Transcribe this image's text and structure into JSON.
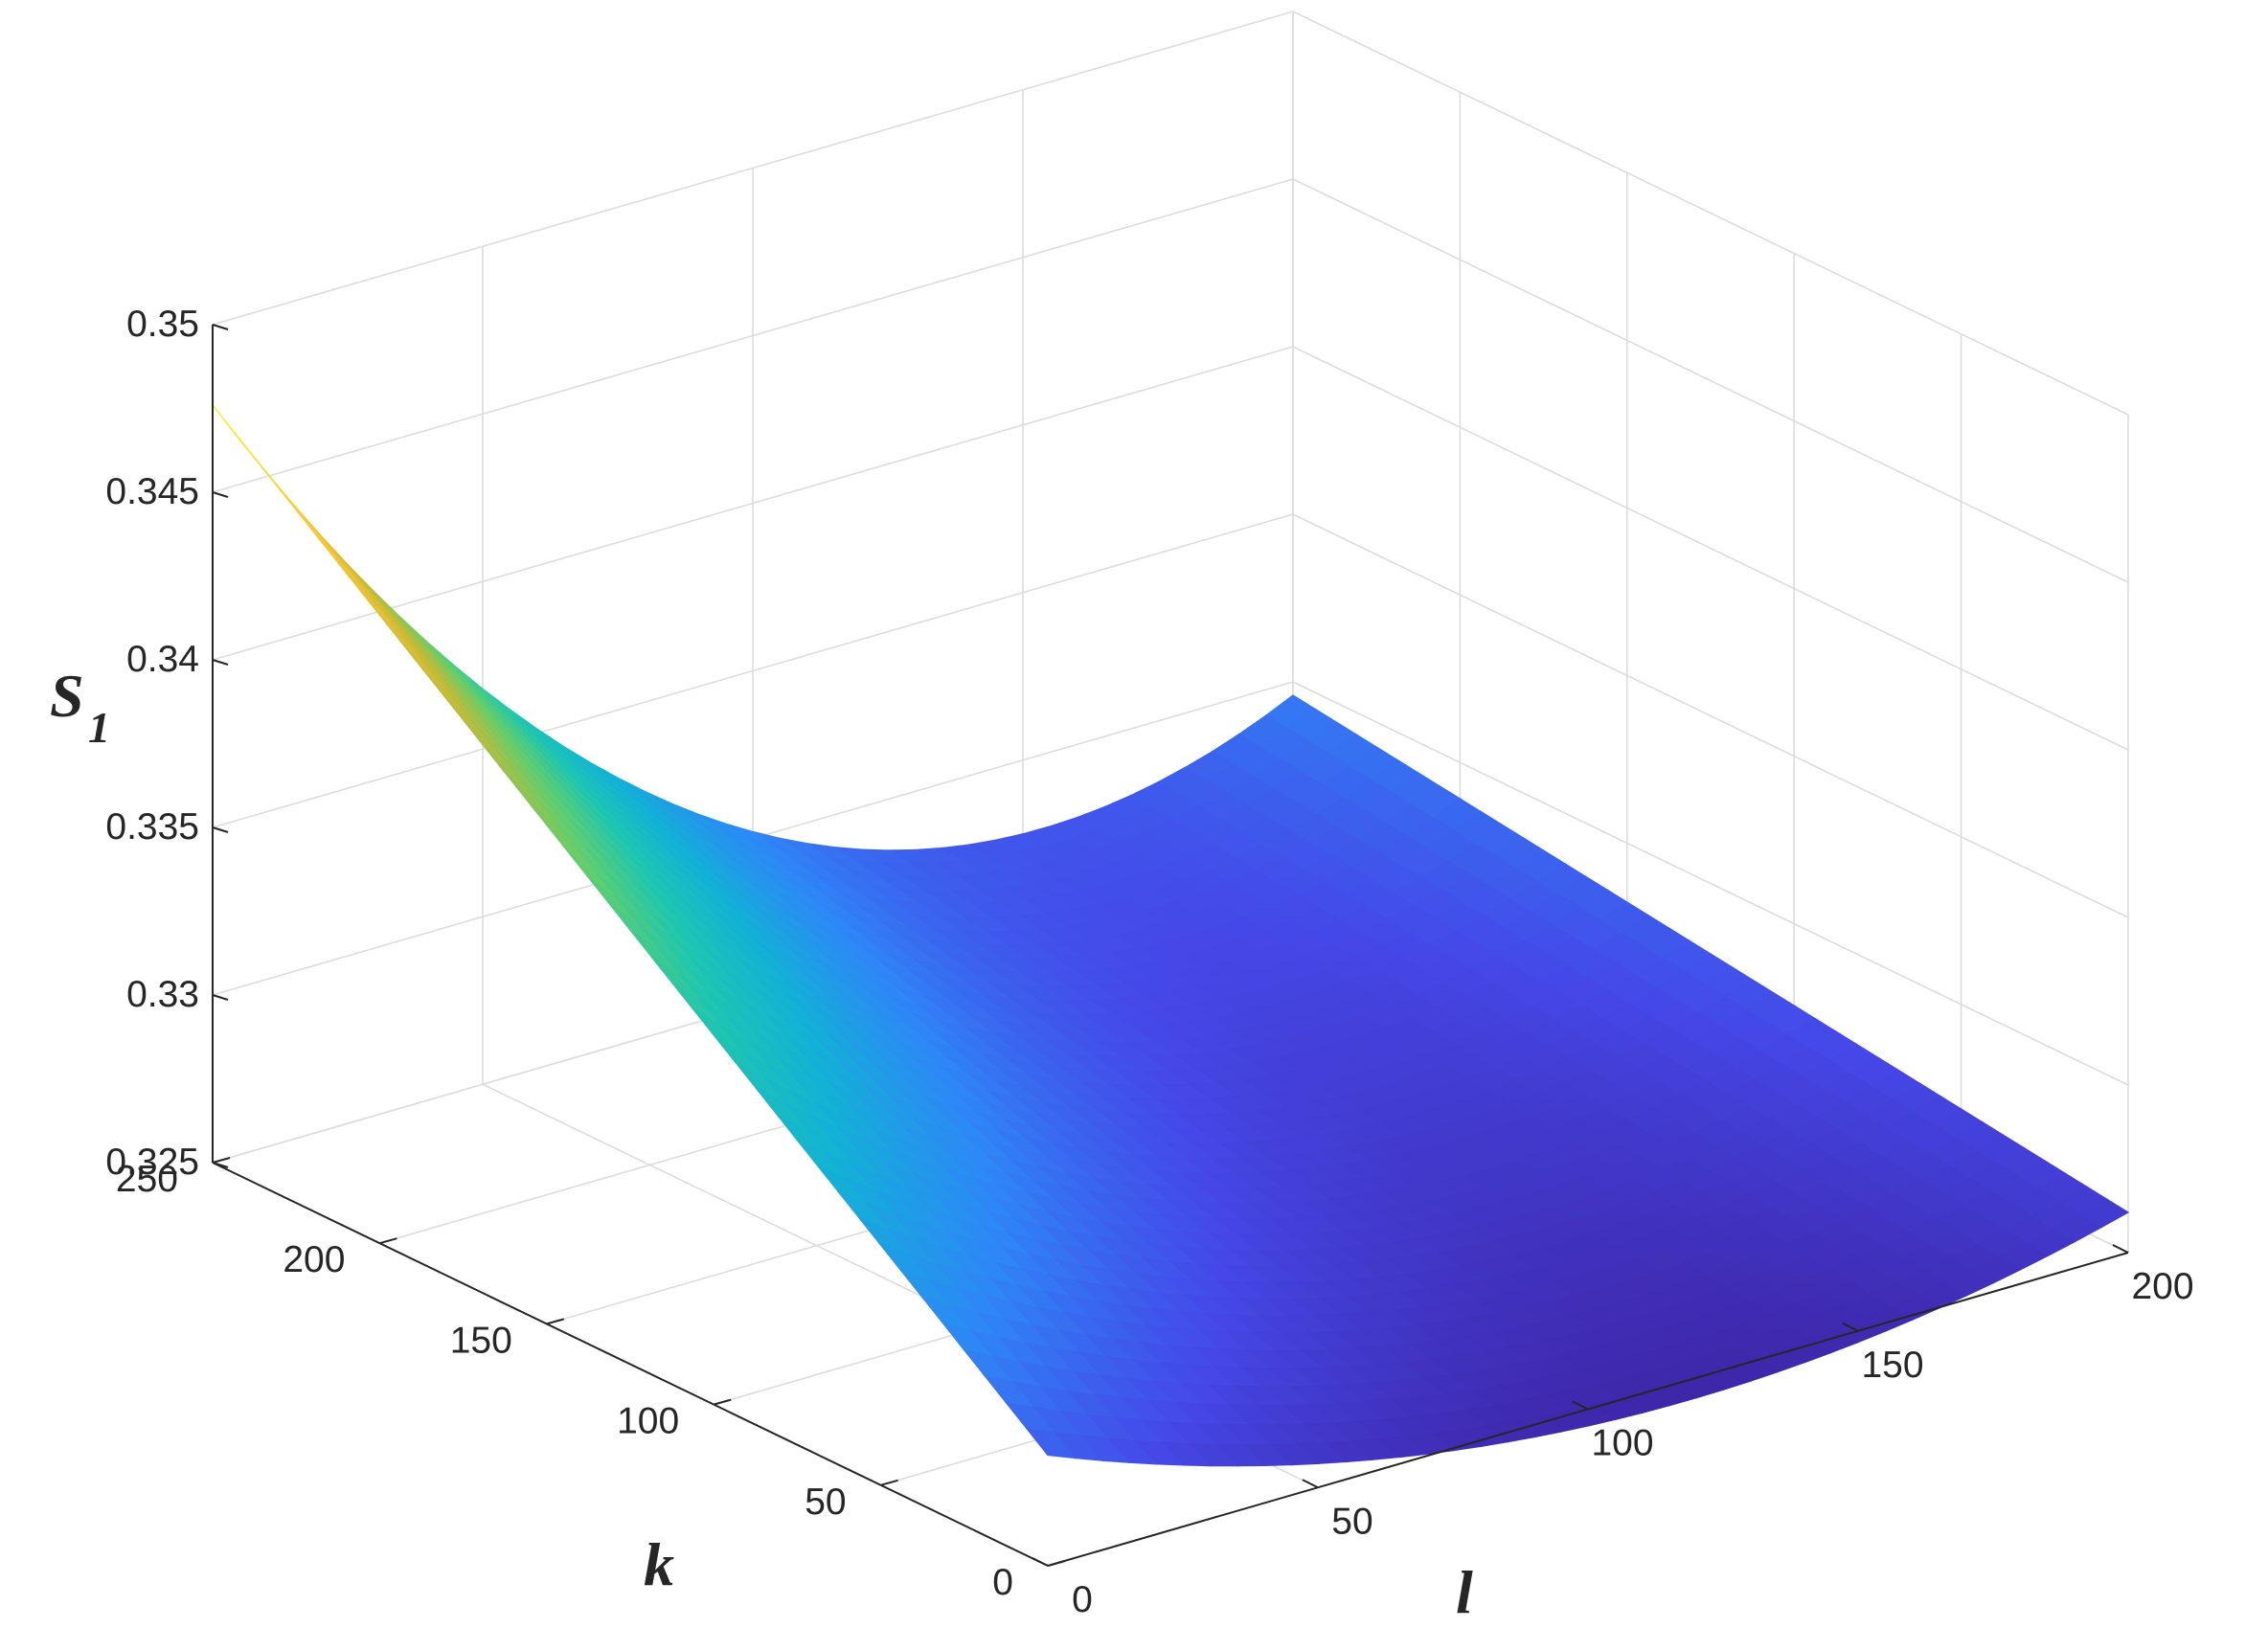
{
  "chart_data": {
    "type": "surface",
    "xlabel": "l",
    "ylabel": "k",
    "zlabel": "S",
    "zlabel_subscript": "1",
    "xlim": [
      0,
      200
    ],
    "ylim": [
      0,
      250
    ],
    "zlim": [
      0.325,
      0.35
    ],
    "xticks": [
      "0",
      "50",
      "100",
      "150",
      "200"
    ],
    "yticks": [
      "0",
      "50",
      "100",
      "150",
      "200",
      "250"
    ],
    "zticks": [
      "0.325",
      "0.33",
      "0.335",
      "0.34",
      "0.345",
      "0.35"
    ],
    "grid": true,
    "colormap": "parula",
    "surface_samples": {
      "l": [
        0,
        100,
        200
      ],
      "k": [
        0,
        250
      ],
      "S1_at_k0": [
        0.3283,
        0.3245,
        0.3262
      ],
      "S1_at_k250": [
        0.3476,
        0.3302,
        0.3296
      ]
    },
    "colors": {
      "low": "#3e26a8",
      "mid": "#1ec6b0",
      "high": "#f9fb0e"
    }
  }
}
